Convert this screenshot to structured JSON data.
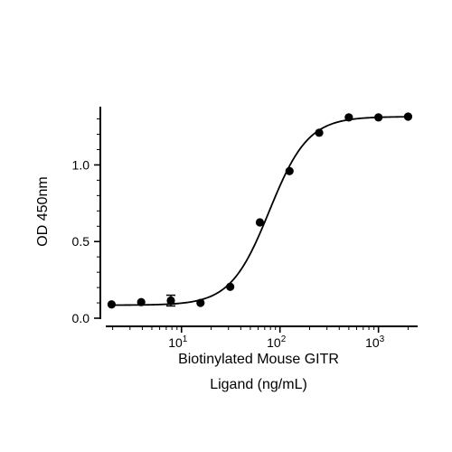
{
  "chart_data": {
    "type": "scatter",
    "title": "",
    "xlabel_line1": "Biotinylated Mouse GITR",
    "xlabel_line2": "Ligand (ng/mL)",
    "ylabel": "OD 450nm",
    "x_scale": "log",
    "xlim": [
      1.5,
      2500
    ],
    "ylim": [
      0,
      1.38
    ],
    "x_ticks": [
      {
        "value": 10,
        "base": "10",
        "exp": "1"
      },
      {
        "value": 100,
        "base": "10",
        "exp": "2"
      },
      {
        "value": 1000,
        "base": "10",
        "exp": "3"
      }
    ],
    "y_ticks": [
      {
        "value": 0.0,
        "label": "0.0"
      },
      {
        "value": 0.5,
        "label": "0.5"
      },
      {
        "value": 1.0,
        "label": "1.0"
      }
    ],
    "series": [
      {
        "x": [
          1.95,
          3.9,
          7.8,
          15.6,
          31.25,
          62.5,
          125,
          250,
          500,
          1000,
          2000
        ],
        "y": [
          0.09,
          0.105,
          0.115,
          0.1,
          0.205,
          0.625,
          0.96,
          1.21,
          1.31,
          1.31,
          1.315
        ],
        "err": [
          0,
          0,
          0.035,
          0,
          0,
          0,
          0,
          0,
          0,
          0,
          0
        ]
      }
    ],
    "fit": {
      "model": "4PL",
      "bottom": 0.085,
      "top": 1.315,
      "ec50": 78,
      "hill": 2.2
    },
    "grid": false,
    "legend": "none"
  }
}
